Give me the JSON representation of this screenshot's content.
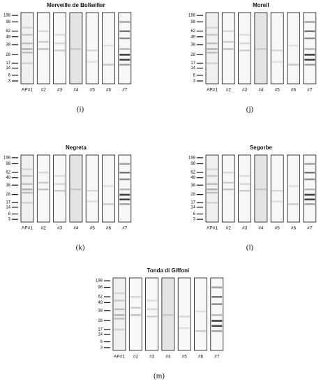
{
  "markers": [
    "198",
    "98",
    "62",
    "49",
    "38",
    "28",
    "17",
    "14",
    "6",
    "3"
  ],
  "lanes": [
    "AP#1",
    "#2",
    "#3",
    "#4",
    "#5",
    "#6",
    "#7"
  ],
  "panels": [
    {
      "title": "Merveille de Bollwiller",
      "label": "(i)"
    },
    {
      "title": "Morell",
      "label": "(j)"
    },
    {
      "title": "Negreta",
      "label": "(k)"
    },
    {
      "title": "Segorbe",
      "label": "(l)"
    },
    {
      "title": "Tonda di Giffoni",
      "label": "(m)"
    }
  ]
}
